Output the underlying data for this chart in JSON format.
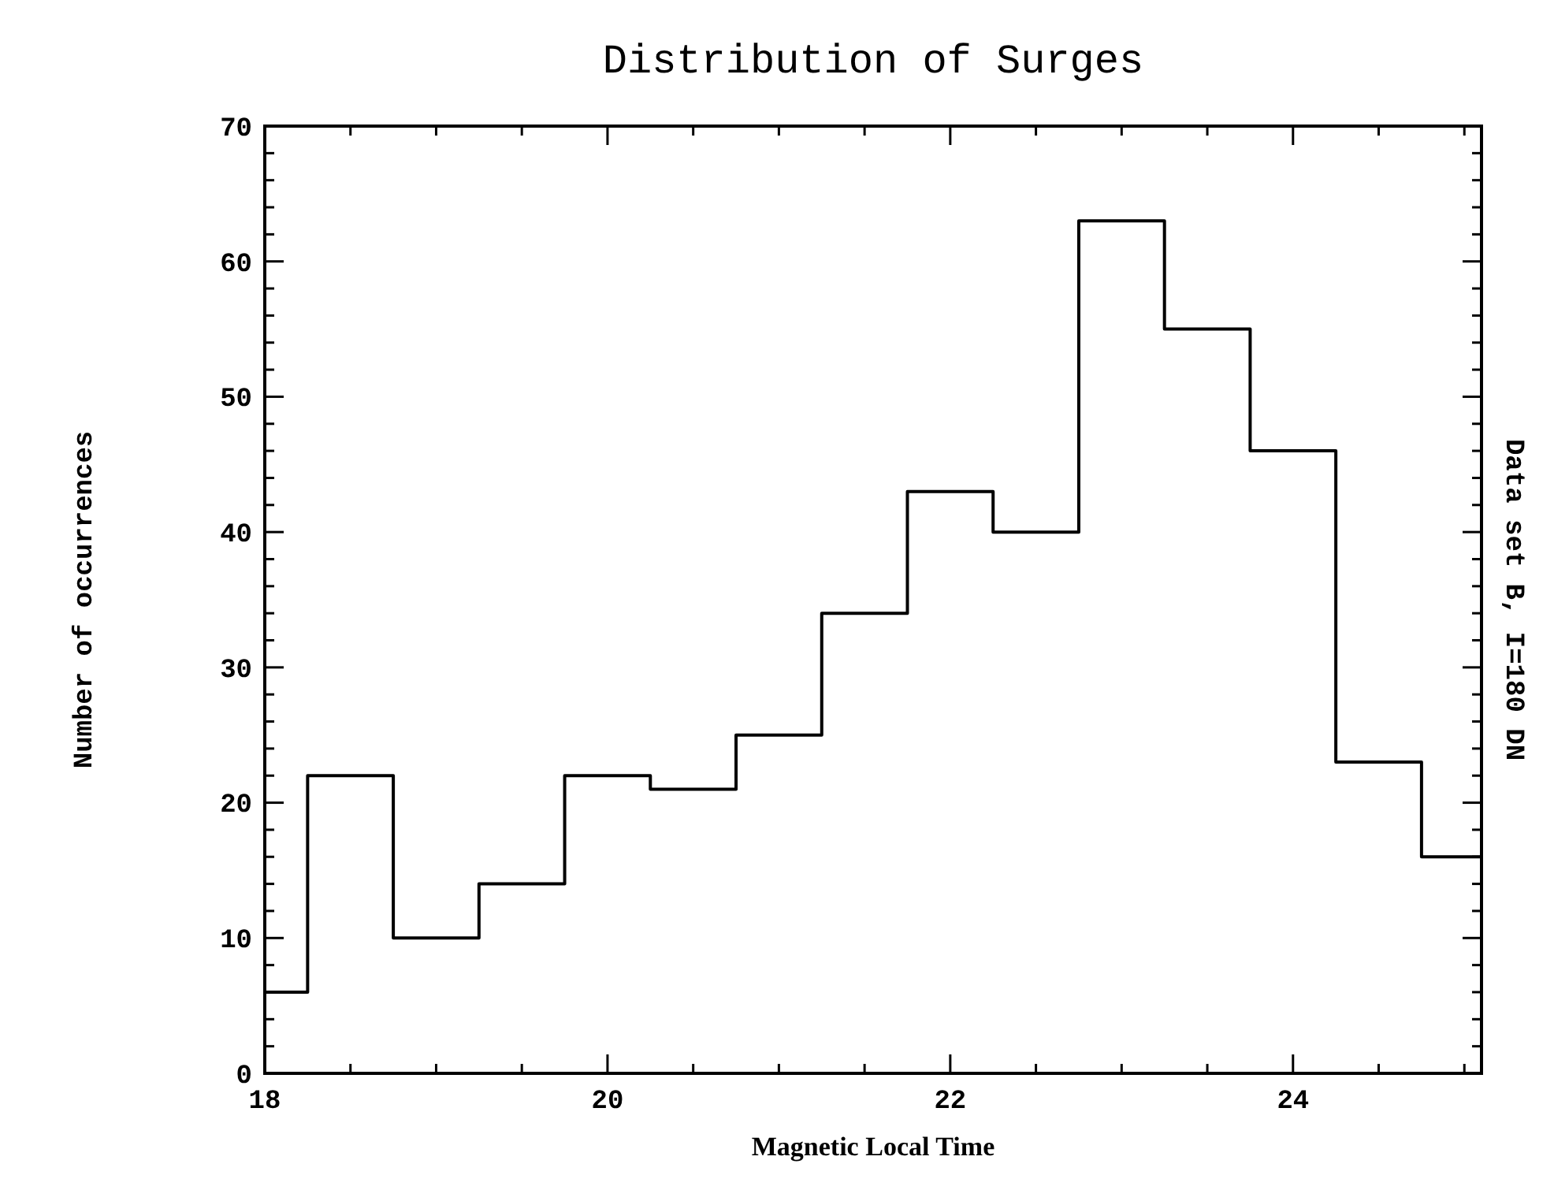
{
  "chart_data": {
    "type": "histogram",
    "title": "Distribution of Surges",
    "xlabel": "Magnetic Local Time",
    "ylabel": "Number of occurrences",
    "annotations": [
      "Data set B, I=180 DN"
    ],
    "bins": [
      18,
      18.25,
      18.75,
      19.25,
      19.75,
      20.25,
      20.75,
      21.25,
      21.75,
      22.25,
      22.75,
      23.25,
      23.75,
      24.25,
      24.75,
      25.1
    ],
    "values": [
      6,
      22,
      10,
      14,
      22,
      21,
      25,
      34,
      43,
      40,
      63,
      55,
      46,
      23,
      16
    ],
    "color": "#000000",
    "xlim": [
      18,
      25.1
    ],
    "ylim": [
      0,
      70
    ],
    "xticks": [
      18,
      {
        "value": 18.5,
        "label": null
      },
      {
        "value": 19,
        "label": null
      },
      {
        "value": 19.5,
        "label": null
      },
      20,
      {
        "value": 20.5,
        "label": null
      },
      {
        "value": 21,
        "label": null
      },
      {
        "value": 21.5,
        "label": null
      },
      22,
      {
        "value": 22.5,
        "label": null
      },
      {
        "value": 23,
        "label": null
      },
      {
        "value": 23.5,
        "label": null
      },
      24,
      {
        "value": 24.5,
        "label": null
      },
      {
        "value": 25,
        "label": null
      }
    ],
    "yticks": [
      0,
      {
        "value": 2,
        "label": null
      },
      {
        "value": 4,
        "label": null
      },
      {
        "value": 6,
        "label": null
      },
      {
        "value": 8,
        "label": null
      },
      10,
      {
        "value": 12,
        "label": null
      },
      {
        "value": 14,
        "label": null
      },
      {
        "value": 16,
        "label": null
      },
      {
        "value": 18,
        "label": null
      },
      20,
      {
        "value": 22,
        "label": null
      },
      {
        "value": 24,
        "label": null
      },
      {
        "value": 26,
        "label": null
      },
      {
        "value": 28,
        "label": null
      },
      30,
      {
        "value": 32,
        "label": null
      },
      {
        "value": 34,
        "label": null
      },
      {
        "value": 36,
        "label": null
      },
      {
        "value": 38,
        "label": null
      },
      40,
      {
        "value": 42,
        "label": null
      },
      {
        "value": 44,
        "label": null
      },
      {
        "value": 46,
        "label": null
      },
      {
        "value": 48,
        "label": null
      },
      50,
      {
        "value": 52,
        "label": null
      },
      {
        "value": 54,
        "label": null
      },
      {
        "value": 56,
        "label": null
      },
      {
        "value": 58,
        "label": null
      },
      60,
      {
        "value": 62,
        "label": null
      },
      {
        "value": 64,
        "label": null
      },
      {
        "value": 66,
        "label": null
      },
      {
        "value": 68,
        "label": null
      },
      70
    ]
  }
}
